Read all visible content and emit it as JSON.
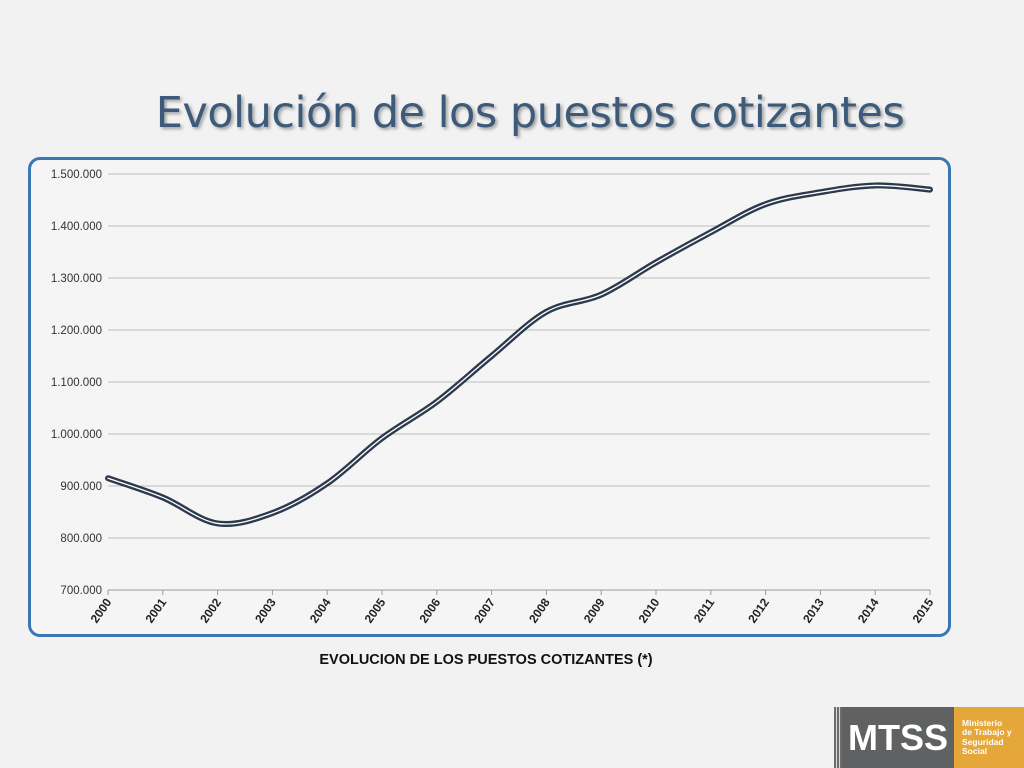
{
  "slide": {
    "title": "Evolución de los puestos cotizantes",
    "caption": "EVOLUCION DE LOS PUESTOS COTIZANTES (*)"
  },
  "logo": {
    "abbr": "MTSS",
    "lines": [
      "Ministerio",
      "de Trabajo y",
      "Seguridad",
      "Social"
    ],
    "colors": {
      "dark": "#5f6163",
      "accent": "#e5a63a"
    }
  },
  "colors": {
    "frame": "#3b77b5",
    "line": "#2d3a4e",
    "title": "#3d5a7a"
  },
  "chart_data": {
    "type": "line",
    "categories": [
      "2000",
      "2001",
      "2002",
      "2003",
      "2004",
      "2005",
      "2006",
      "2007",
      "2008",
      "2009",
      "2010",
      "2011",
      "2012",
      "2013",
      "2014",
      "2015"
    ],
    "series": [
      {
        "values": [
          915000,
          878000,
          828000,
          848000,
          905000,
          992000,
          1062000,
          1150000,
          1235000,
          1268000,
          1330000,
          1388000,
          1442000,
          1465000,
          1478000,
          1470000
        ]
      }
    ],
    "ylim": [
      700000,
      1500000
    ],
    "yticks": [
      700000,
      800000,
      900000,
      1000000,
      1100000,
      1200000,
      1300000,
      1400000,
      1500000
    ],
    "ytick_labels": [
      "700.000",
      "800.000",
      "900.000",
      "1.000.000",
      "1.100.000",
      "1.200.000",
      "1.300.000",
      "1.400.000",
      "1.500.000"
    ],
    "grid": true,
    "legend": "none"
  }
}
